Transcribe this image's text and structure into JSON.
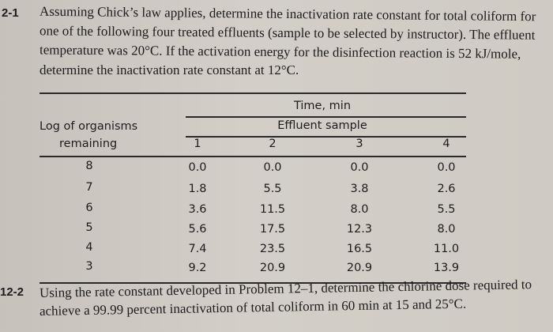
{
  "problem_1": {
    "number": "2-1",
    "lines": [
      "Assuming Chick’s law applies, determine the inactivation rate constant for total coliform for",
      "one of the following four treated effluents (sample to be selected by instructor). The effluent",
      "temperature was 20°C. If the activation energy for the disinfection reaction is 52 kJ/mole,",
      "determine the inactivation rate constant at 12°C."
    ]
  },
  "table": {
    "group_header": "Time, min",
    "subheader": "Effluent sample",
    "row_header": [
      "Log of organisms",
      "remaining"
    ],
    "columns": [
      "1",
      "2",
      "3",
      "4"
    ],
    "rows": [
      [
        "8",
        "0.0",
        "0.0",
        "0.0",
        "0.0"
      ],
      [
        "7",
        "1.8",
        "5.5",
        "3.8",
        "2.6"
      ],
      [
        "6",
        "3.6",
        "11.5",
        "8.0",
        "5.5"
      ],
      [
        "5",
        "5.6",
        "17.5",
        "12.3",
        "8.0"
      ],
      [
        "4",
        "7.4",
        "23.5",
        "16.5",
        "11.0"
      ],
      [
        "3",
        "9.2",
        "20.9",
        "20.9",
        "13.9"
      ]
    ]
  },
  "problem_2": {
    "number": "12-2",
    "lines": [
      "Using the rate constant developed in Problem 12–1, determine the chlorine dose required to",
      "achieve a 99.99 percent inactivation of total coliform in 60 min at 15 and 25°C."
    ]
  }
}
